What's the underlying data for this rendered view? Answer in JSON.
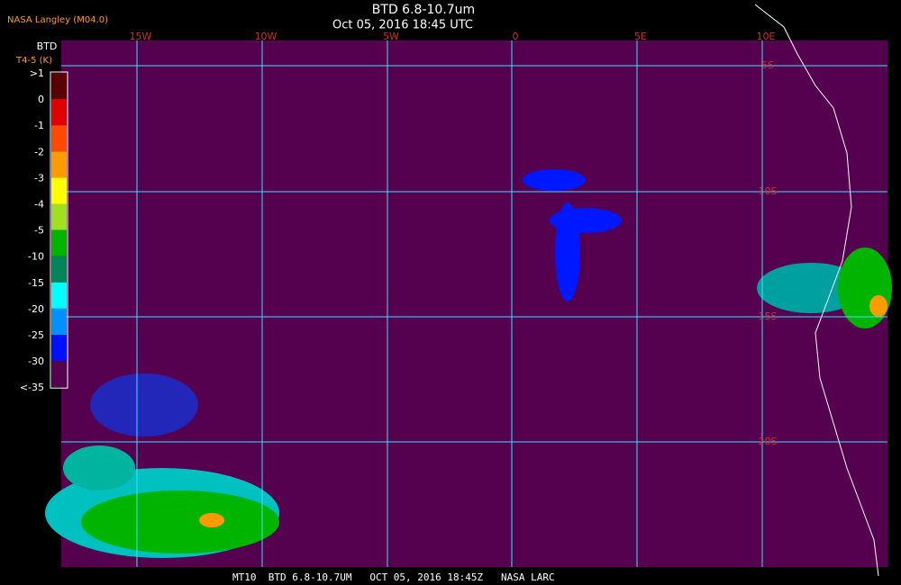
{
  "header": {
    "title": "BTD 6.8-10.7um",
    "subtitle": "Oct 05, 2016 18:45 UTC",
    "source": "NASA Langley (M04.0)"
  },
  "colorbar": {
    "title": "BTD",
    "unit": "T4-5 (K)",
    "labels": [
      ">1",
      "0",
      "-1",
      "-2",
      "-3",
      "-4",
      "-5",
      "-10",
      "-15",
      "-20",
      "-25",
      "-30",
      "<-35"
    ],
    "colors": [
      "#5a0000",
      "#e00000",
      "#ff4a00",
      "#ff9a00",
      "#ffff00",
      "#a0e020",
      "#00b400",
      "#00845a",
      "#00ffff",
      "#0090ff",
      "#0010ff",
      "#560050"
    ]
  },
  "map": {
    "lon_labels": [
      "15W",
      "10W",
      "5W",
      "0",
      "5E",
      "10E"
    ],
    "lat_labels": [
      "5S",
      "10S",
      "15S",
      "20S"
    ]
  },
  "footer": {
    "text": "MT10  BTD 6.8-10.7UM   OCT 05, 2016 18:45Z   NASA LARC"
  }
}
